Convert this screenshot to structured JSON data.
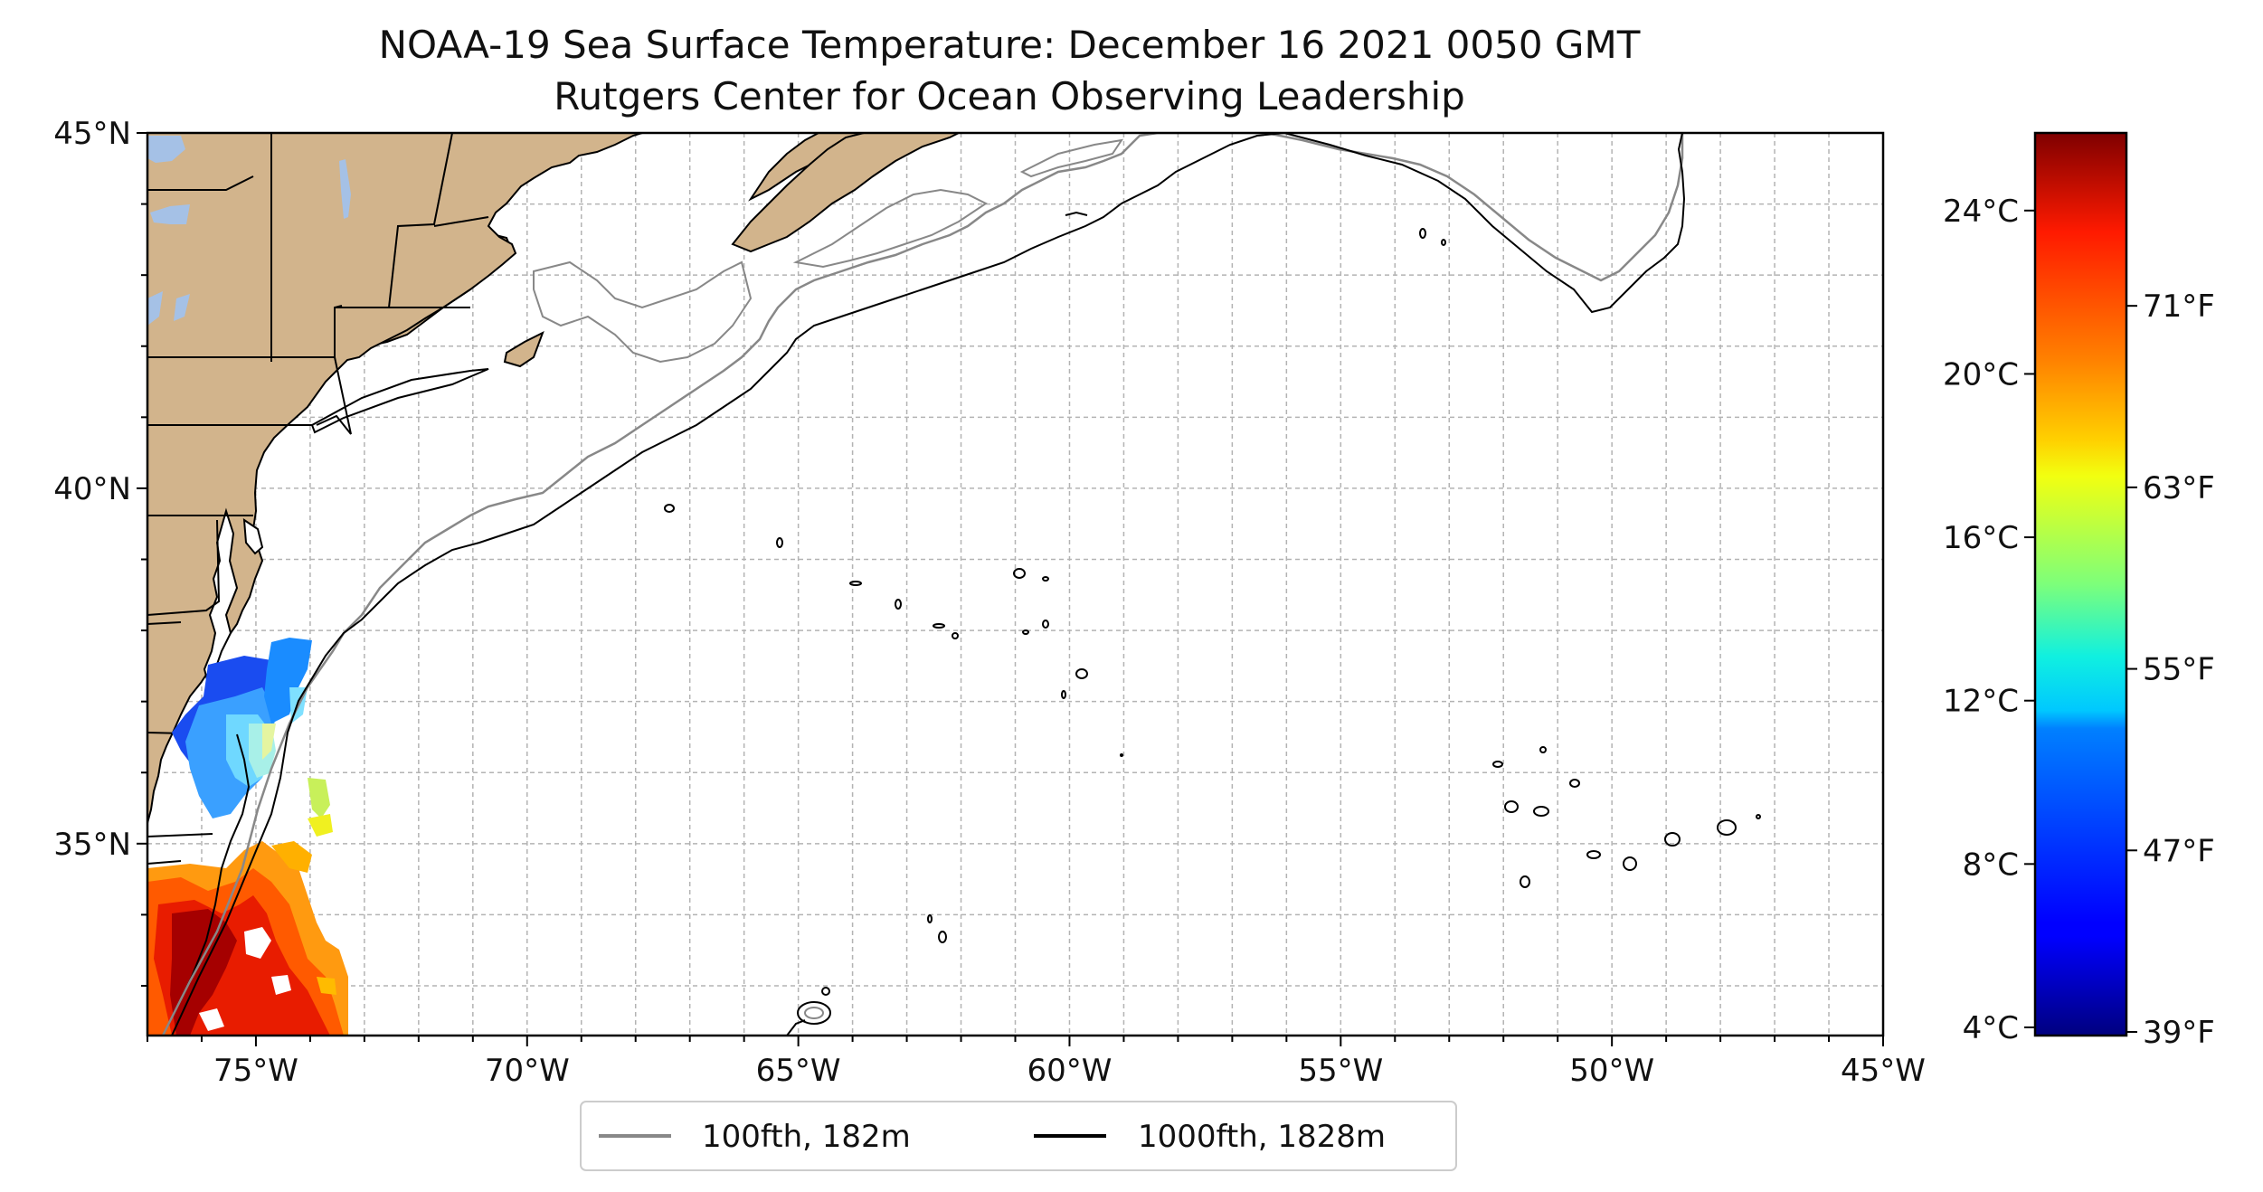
{
  "title": {
    "line1": "NOAA-19 Sea Surface Temperature: December 16 2021 0050 GMT",
    "line2": "Rutgers Center for Ocean Observing Leadership"
  },
  "map": {
    "lon_range": [
      -77,
      -45
    ],
    "lat_range": [
      32.3,
      45
    ],
    "lon_ticks": [
      {
        "value": -75,
        "label": "75°W"
      },
      {
        "value": -70,
        "label": "70°W"
      },
      {
        "value": -65,
        "label": "65°W"
      },
      {
        "value": -60,
        "label": "60°W"
      },
      {
        "value": -55,
        "label": "55°W"
      },
      {
        "value": -50,
        "label": "50°W"
      },
      {
        "value": -45,
        "label": "45°W"
      }
    ],
    "lat_ticks": [
      {
        "value": 45,
        "label": "45°N"
      },
      {
        "value": 40,
        "label": "40°N"
      },
      {
        "value": 35,
        "label": "35°N"
      }
    ],
    "grid": true,
    "land_color": "#d2b48c",
    "lake_color": "#a5c1e6"
  },
  "colorbar": {
    "colormap": "jet",
    "range_c": [
      3.8,
      25.9
    ],
    "celsius_ticks": [
      {
        "value": 4,
        "label": "4°C"
      },
      {
        "value": 8,
        "label": "8°C"
      },
      {
        "value": 12,
        "label": "12°C"
      },
      {
        "value": 16,
        "label": "16°C"
      },
      {
        "value": 20,
        "label": "20°C"
      },
      {
        "value": 24,
        "label": "24°C"
      }
    ],
    "fahrenheit_ticks": [
      {
        "value": 39,
        "label": "39°F"
      },
      {
        "value": 47,
        "label": "47°F"
      },
      {
        "value": 55,
        "label": "55°F"
      },
      {
        "value": 63,
        "label": "63°F"
      },
      {
        "value": 71,
        "label": "71°F"
      }
    ]
  },
  "legend": {
    "placement": "bottom-center",
    "items": [
      {
        "label": "100fth, 182m",
        "color": "#888888"
      },
      {
        "label": "1000fth, 1828m",
        "color": "#000000"
      }
    ]
  }
}
